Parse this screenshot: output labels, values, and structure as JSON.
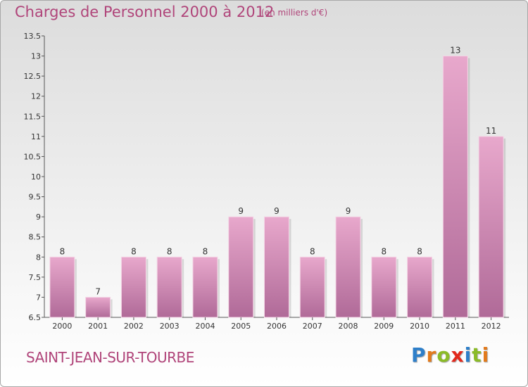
{
  "header": {
    "title": "Charges de Personnel 2000 à 2012",
    "subtitle": "(en milliers d'€)"
  },
  "footer": {
    "commune": "SAINT-JEAN-SUR-TOURBE",
    "logo_text": "Proxiti"
  },
  "colors": {
    "title": "#b0457a",
    "bar_top": "#e8a8cc",
    "bar_bottom": "#b06a98",
    "axis": "#555555"
  },
  "chart_data": {
    "type": "bar",
    "title": "Charges de Personnel 2000 à 2012",
    "subtitle": "(en milliers d'€)",
    "categories": [
      "2000",
      "2001",
      "2002",
      "2003",
      "2004",
      "2005",
      "2006",
      "2007",
      "2008",
      "2009",
      "2010",
      "2011",
      "2012"
    ],
    "values": [
      8,
      7,
      8,
      8,
      8,
      9,
      9,
      8,
      9,
      8,
      8,
      13,
      11
    ],
    "data_labels": [
      "8",
      "7",
      "8",
      "8",
      "8",
      "9",
      "9",
      "8",
      "9",
      "8",
      "8",
      "13",
      "11"
    ],
    "ylim": [
      6.5,
      13.5
    ],
    "yticks": [
      "6.5",
      "7",
      "7.5",
      "8",
      "8.5",
      "9",
      "9.5",
      "10",
      "10.5",
      "11",
      "11.5",
      "12",
      "12.5",
      "13",
      "13.5"
    ],
    "grid": false,
    "legend": "none"
  }
}
